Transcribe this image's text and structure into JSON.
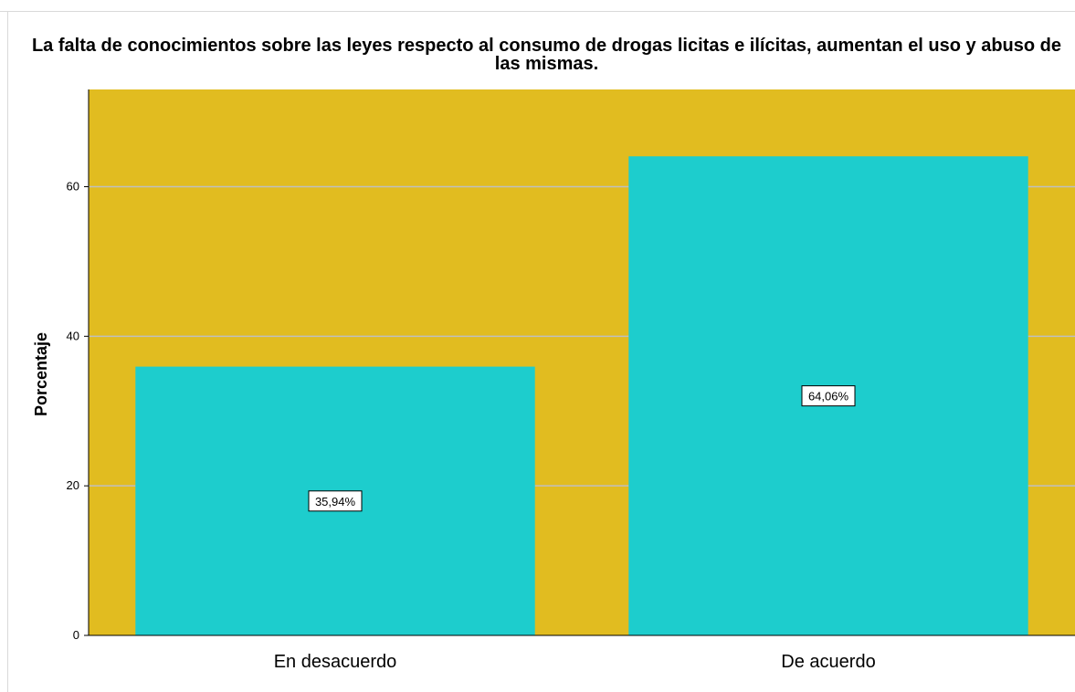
{
  "chart_data": {
    "type": "bar",
    "title": "La falta de conocimientos sobre las leyes respecto al consumo de drogas licitas e ilícitas, aumentan el uso y abuso de las mismas.",
    "ylabel": "Porcentaje",
    "xlabel": "",
    "categories": [
      "En desacuerdo",
      "De acuerdo"
    ],
    "values": [
      35.94,
      64.06
    ],
    "data_labels": [
      "35,94%",
      "64,06%"
    ],
    "yticks": [
      "0",
      "20",
      "40",
      "60"
    ],
    "ylim": [
      0,
      73
    ],
    "grid": true,
    "legend": "none",
    "colors": {
      "plot_bg": "#E1BC20",
      "bar": "#1DCDCD",
      "grid": "#BFBFBF",
      "axis": "#000000"
    }
  }
}
